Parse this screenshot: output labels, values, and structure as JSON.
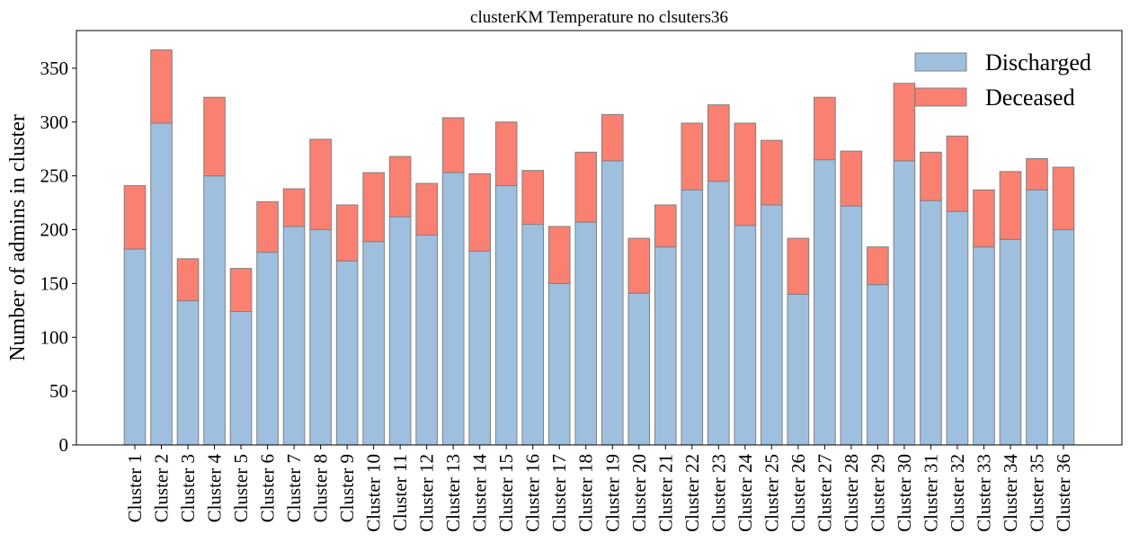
{
  "chart_data": {
    "type": "bar",
    "stacked": true,
    "title": "clusterKM Temperature no clsuters36",
    "xlabel": "",
    "ylabel": "Number of admins in cluster",
    "ylim": [
      0,
      385
    ],
    "yticks": [
      0,
      50,
      100,
      150,
      200,
      250,
      300,
      350
    ],
    "grid": false,
    "legend_position": "top-right",
    "categories": [
      "Cluster 1",
      "Cluster 2",
      "Cluster 3",
      "Cluster 4",
      "Cluster 5",
      "Cluster 6",
      "Cluster 7",
      "Cluster 8",
      "Cluster 9",
      "Cluster 10",
      "Cluster 11",
      "Cluster 12",
      "Cluster 13",
      "Cluster 14",
      "Cluster 15",
      "Cluster 16",
      "Cluster 17",
      "Cluster 18",
      "Cluster 19",
      "Cluster 20",
      "Cluster 21",
      "Cluster 22",
      "Cluster 23",
      "Cluster 24",
      "Cluster 25",
      "Cluster 26",
      "Cluster 27",
      "Cluster 28",
      "Cluster 29",
      "Cluster 30",
      "Cluster 31",
      "Cluster 32",
      "Cluster 33",
      "Cluster 34",
      "Cluster 35",
      "Cluster 36"
    ],
    "series": [
      {
        "name": "Discharged",
        "color": "#9fbfdf",
        "values": [
          182,
          299,
          134,
          250,
          124,
          179,
          203,
          200,
          171,
          189,
          212,
          195,
          253,
          180,
          241,
          205,
          150,
          207,
          264,
          141,
          184,
          237,
          245,
          204,
          223,
          140,
          265,
          222,
          149,
          264,
          227,
          217,
          184,
          191,
          237,
          200
        ]
      },
      {
        "name": "Deceased",
        "color": "#fa8072",
        "values": [
          59,
          68,
          39,
          73,
          40,
          47,
          35,
          84,
          52,
          64,
          56,
          48,
          51,
          72,
          59,
          50,
          53,
          65,
          43,
          51,
          39,
          62,
          71,
          95,
          60,
          52,
          58,
          51,
          35,
          72,
          45,
          70,
          53,
          63,
          29,
          58
        ]
      }
    ],
    "edge_color": "#808080"
  }
}
